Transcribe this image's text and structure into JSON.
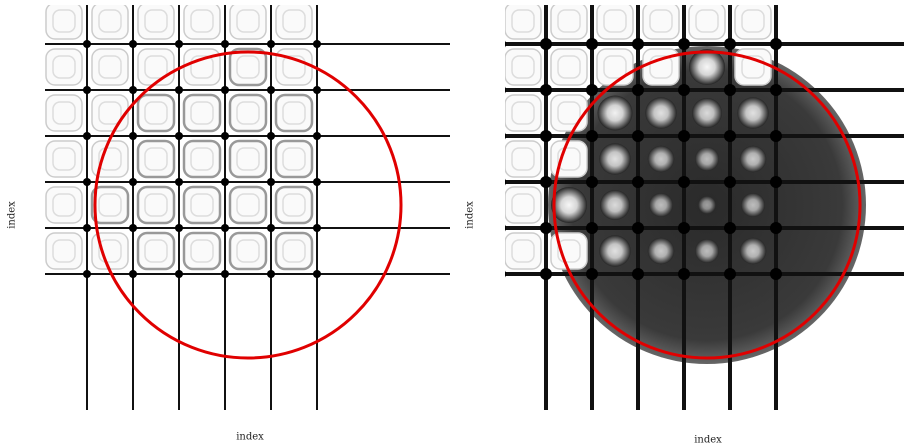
{
  "panels": [
    {
      "xlabel": "index",
      "ylabel": "index"
    },
    {
      "xlabel": "index",
      "ylabel": "index"
    }
  ]
}
